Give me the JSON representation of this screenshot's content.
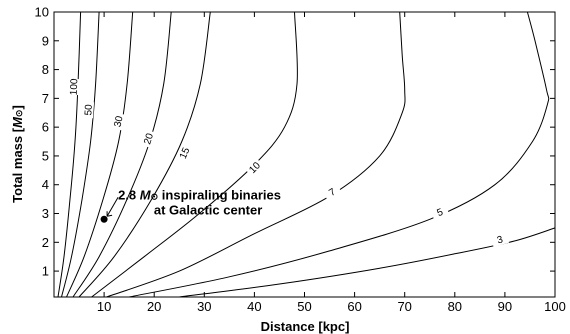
{
  "chart_data": {
    "type": "contour",
    "xlabel": "Distance [kpc]",
    "ylabel_prefix": "Total mass [",
    "ylabel_unit": "M",
    "ylabel_sub": "⊙",
    "ylabel_suffix": "]",
    "xlim": [
      0,
      100
    ],
    "ylim": [
      0.1,
      10
    ],
    "xticks": [
      "10",
      "20",
      "30",
      "40",
      "50",
      "60",
      "70",
      "80",
      "90",
      "100"
    ],
    "yticks": [
      "1",
      "2",
      "3",
      "4",
      "5",
      "6",
      "7",
      "8",
      "9",
      "10"
    ],
    "contours": [
      {
        "level": "100",
        "points": [
          [
            0.8,
            0.1
          ],
          [
            2.0,
            1.5
          ],
          [
            3.2,
            3.5
          ],
          [
            4.2,
            5.5
          ],
          [
            4.8,
            7.5
          ],
          [
            5.3,
            10
          ]
        ],
        "label_at": [
          3.9,
          7.4
        ]
      },
      {
        "level": "50",
        "points": [
          [
            1.5,
            0.1
          ],
          [
            3.5,
            1.5
          ],
          [
            5.6,
            3.5
          ],
          [
            7.3,
            5.5
          ],
          [
            8.3,
            7.5
          ],
          [
            9.0,
            10
          ]
        ],
        "label_at": [
          6.8,
          6.6
        ]
      },
      {
        "level": "30",
        "points": [
          [
            2.5,
            0.1
          ],
          [
            6.0,
            1.5
          ],
          [
            9.8,
            3.5
          ],
          [
            12.9,
            5.5
          ],
          [
            14.6,
            7.5
          ],
          [
            15.7,
            10
          ]
        ],
        "label_at": [
          12.8,
          6.2
        ]
      },
      {
        "level": "20",
        "points": [
          [
            3.8,
            0.1
          ],
          [
            9.0,
            1.5
          ],
          [
            14.6,
            3.5
          ],
          [
            19.1,
            5.5
          ],
          [
            21.9,
            7.5
          ],
          [
            23.4,
            10
          ]
        ],
        "label_at": [
          18.8,
          5.6
        ]
      },
      {
        "level": "15",
        "points": [
          [
            5.0,
            0.1
          ],
          [
            12.0,
            1.5
          ],
          [
            19.5,
            3.5
          ],
          [
            25.5,
            5.5
          ],
          [
            29.2,
            7.5
          ],
          [
            31.2,
            10
          ]
        ],
        "label_at": [
          26.0,
          5.1
        ]
      },
      {
        "level": "10",
        "points": [
          [
            7.5,
            0.1
          ],
          [
            18.0,
            1.5
          ],
          [
            29.0,
            3.0
          ],
          [
            40.0,
            4.7
          ],
          [
            46.0,
            6.0
          ],
          [
            48.5,
            7.5
          ],
          [
            48.0,
            10
          ]
        ],
        "label_at": [
          40.0,
          4.6
        ]
      },
      {
        "level": "7",
        "points": [
          [
            10.5,
            0.1
          ],
          [
            25.0,
            1.0
          ],
          [
            40.0,
            2.3
          ],
          [
            55.0,
            3.6
          ],
          [
            65.0,
            5.0
          ],
          [
            69.5,
            6.5
          ],
          [
            70.0,
            7.3
          ],
          [
            69.5,
            8.5
          ],
          [
            69.0,
            10
          ]
        ],
        "label_at": [
          55.5,
          3.75
        ]
      },
      {
        "level": "5",
        "points": [
          [
            15.0,
            0.1
          ],
          [
            35.0,
            0.8
          ],
          [
            55.0,
            1.7
          ],
          [
            75.0,
            2.8
          ],
          [
            88.0,
            4.0
          ],
          [
            95.5,
            5.5
          ],
          [
            98.5,
            6.8
          ],
          [
            98.3,
            7.3
          ],
          [
            96.0,
            9.0
          ],
          [
            94.5,
            10
          ]
        ],
        "label_at": [
          77.0,
          3.05
        ]
      },
      {
        "level": "3",
        "points": [
          [
            25.0,
            0.1
          ],
          [
            45.0,
            0.55
          ],
          [
            65.0,
            1.1
          ],
          [
            80.0,
            1.6
          ],
          [
            92.0,
            2.05
          ],
          [
            100.0,
            2.5
          ]
        ],
        "label_at": [
          89.0,
          2.1
        ]
      }
    ],
    "marker": {
      "x": 10,
      "y": 2.8
    },
    "annotation_line1_prefix": "2.8 ",
    "annotation_line1_unit": "M",
    "annotation_line1_sub": "⊙",
    "annotation_line1_suffix": " inspiraling binaries",
    "annotation_line2": "at Galactic center"
  }
}
